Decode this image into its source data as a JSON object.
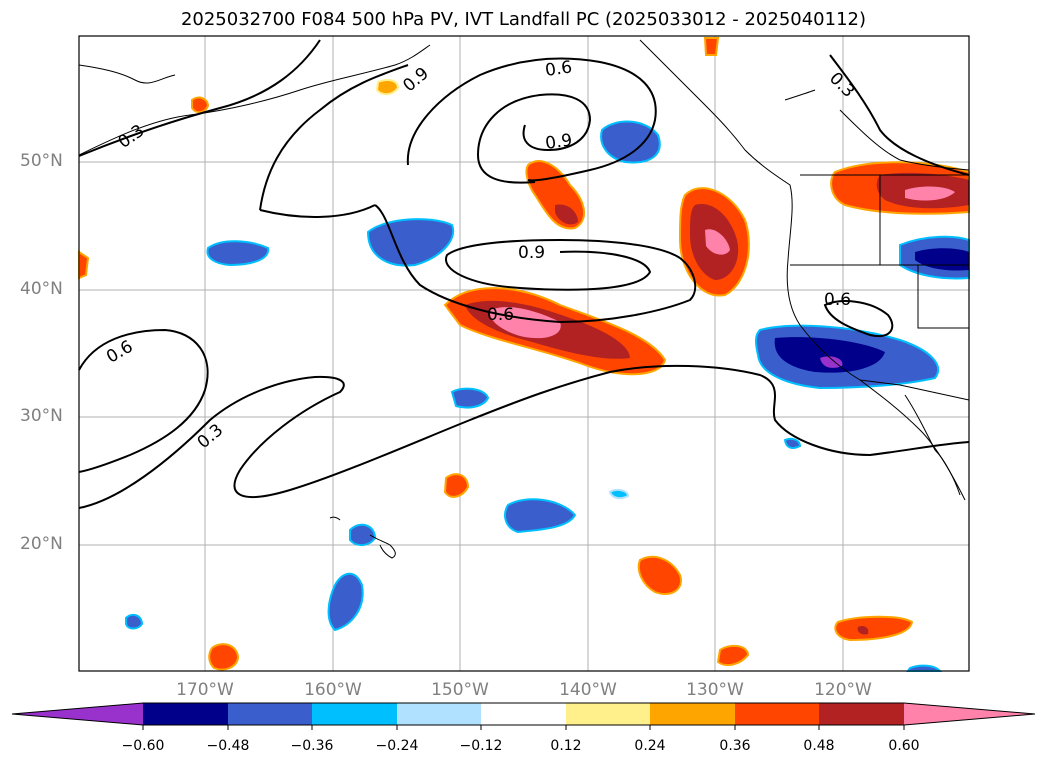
{
  "title": "2025032700 F084 500 hPa PV, IVT Landfall PC (2025033012 - 2025040112)",
  "lat_labels": [
    "50°N",
    "40°N",
    "30°N",
    "20°N"
  ],
  "lon_labels": [
    "170°W",
    "160°W",
    "150°W",
    "140°W",
    "130°W",
    "120°W"
  ],
  "contour_labels": [
    "0.9",
    "0.6",
    "0.9",
    "0.3",
    "0.3",
    "0.9",
    "0.6",
    "0.6",
    "0.6",
    "0.3"
  ],
  "colorbar": {
    "ticks": [
      "−0.60",
      "−0.48",
      "−0.36",
      "−0.24",
      "−0.12",
      "0.12",
      "0.24",
      "0.36",
      "0.48",
      "0.60"
    ],
    "colors": [
      "#9932cc",
      "#00008b",
      "#3a5fcd",
      "#00bfff",
      "#b0e2ff",
      "#ffffff",
      "#fff08c",
      "#ffa500",
      "#ff4500",
      "#b22222",
      "#ff82ab"
    ]
  }
}
